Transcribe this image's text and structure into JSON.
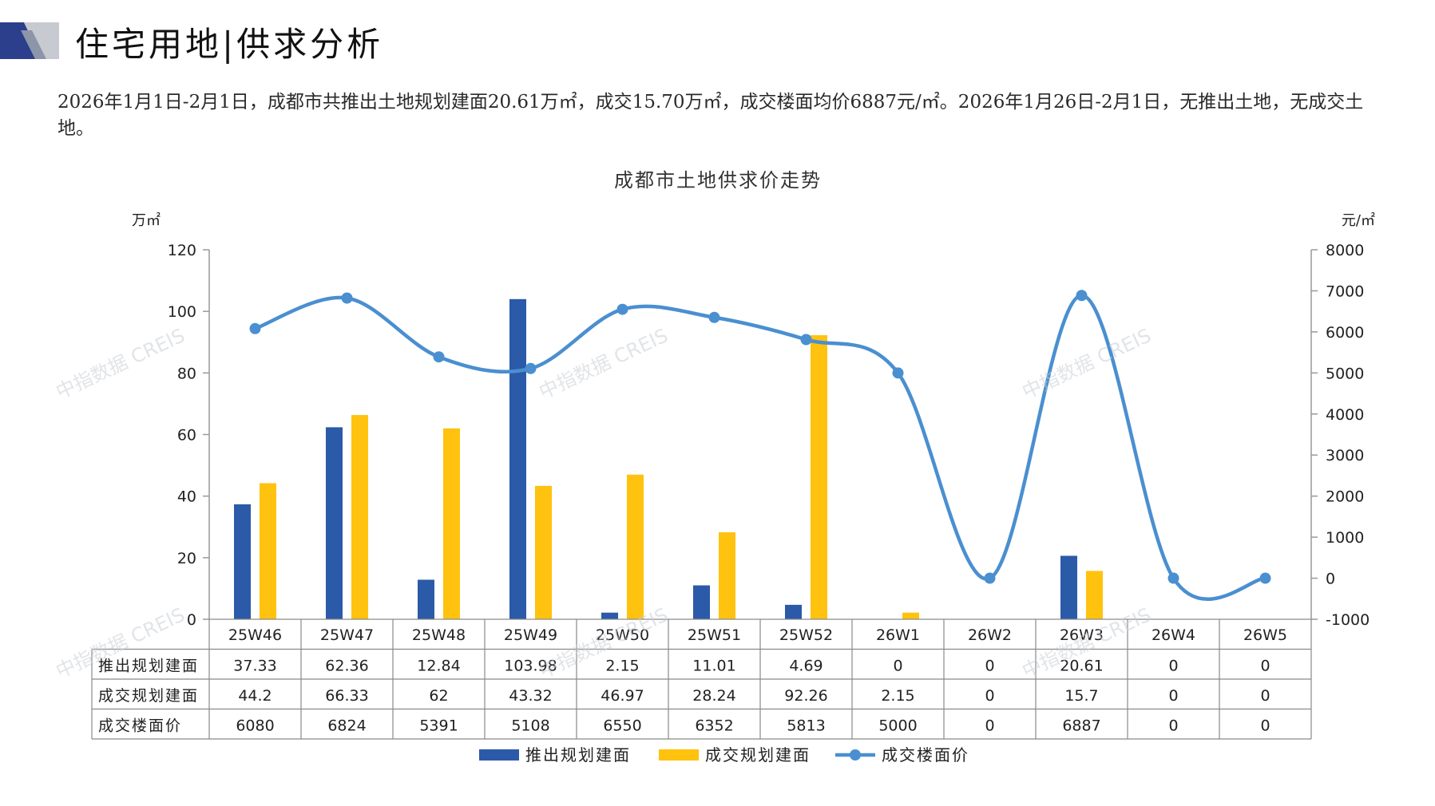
{
  "header": {
    "title": "住宅用地|供求分析"
  },
  "summary": {
    "text": "2026年1月1日-2月1日，成都市共推出土地规划建面20.61万㎡，成交15.70万㎡，成交楼面均价6887元/㎡。2026年1月26日-2月1日，无推出土地，无成交土地。"
  },
  "watermark": "中指数据 CREIS",
  "colors": {
    "supply": "#2b5aa8",
    "deal": "#ffc20e",
    "price": "#4a8fd0",
    "logo_dark": "#2b3f8c",
    "logo_light": "#c7cad1"
  },
  "chart_data": {
    "type": "bar",
    "title": "成都市土地供求价走势",
    "y_unit_left": "万㎡",
    "y_unit_right": "元/㎡",
    "ylim_left": [
      0,
      120
    ],
    "yticks_left": [
      0,
      20,
      40,
      60,
      80,
      100,
      120
    ],
    "ylim_right": [
      -1000,
      8000
    ],
    "yticks_right": [
      -1000,
      0,
      1000,
      2000,
      3000,
      4000,
      5000,
      6000,
      7000,
      8000
    ],
    "categories": [
      "25W46",
      "25W47",
      "25W48",
      "25W49",
      "25W50",
      "25W51",
      "25W52",
      "26W1",
      "26W2",
      "26W3",
      "26W4",
      "26W5"
    ],
    "series": [
      {
        "name": "推出规划建面",
        "kind": "bar",
        "axis": "left",
        "color": "#2b5aa8",
        "values": [
          37.33,
          62.36,
          12.84,
          103.98,
          2.15,
          11.01,
          4.69,
          0,
          0,
          20.61,
          0,
          0
        ],
        "labels": [
          "37.33",
          "62.36",
          "12.84",
          "103.98",
          "2.15",
          "11.01",
          "4.69",
          "0",
          "0",
          "20.61",
          "0",
          "0"
        ]
      },
      {
        "name": "成交规划建面",
        "kind": "bar",
        "axis": "left",
        "color": "#ffc20e",
        "values": [
          44.2,
          66.33,
          62,
          43.32,
          46.97,
          28.24,
          92.26,
          2.15,
          0,
          15.7,
          0,
          0
        ],
        "labels": [
          "44.2",
          "66.33",
          "62",
          "43.32",
          "46.97",
          "28.24",
          "92.26",
          "2.15",
          "0",
          "15.7",
          "0",
          "0"
        ]
      },
      {
        "name": "成交楼面价",
        "kind": "line",
        "axis": "right",
        "color": "#4a8fd0",
        "values": [
          6080,
          6824,
          5391,
          5108,
          6550,
          6352,
          5813,
          5000,
          0,
          6887,
          0,
          0
        ],
        "labels": [
          "6080",
          "6824",
          "5391",
          "5108",
          "6550",
          "6352",
          "5813",
          "5000",
          "0",
          "6887",
          "0",
          "0"
        ]
      }
    ],
    "grid": false,
    "legend": "bottom-center",
    "data_table": true
  }
}
